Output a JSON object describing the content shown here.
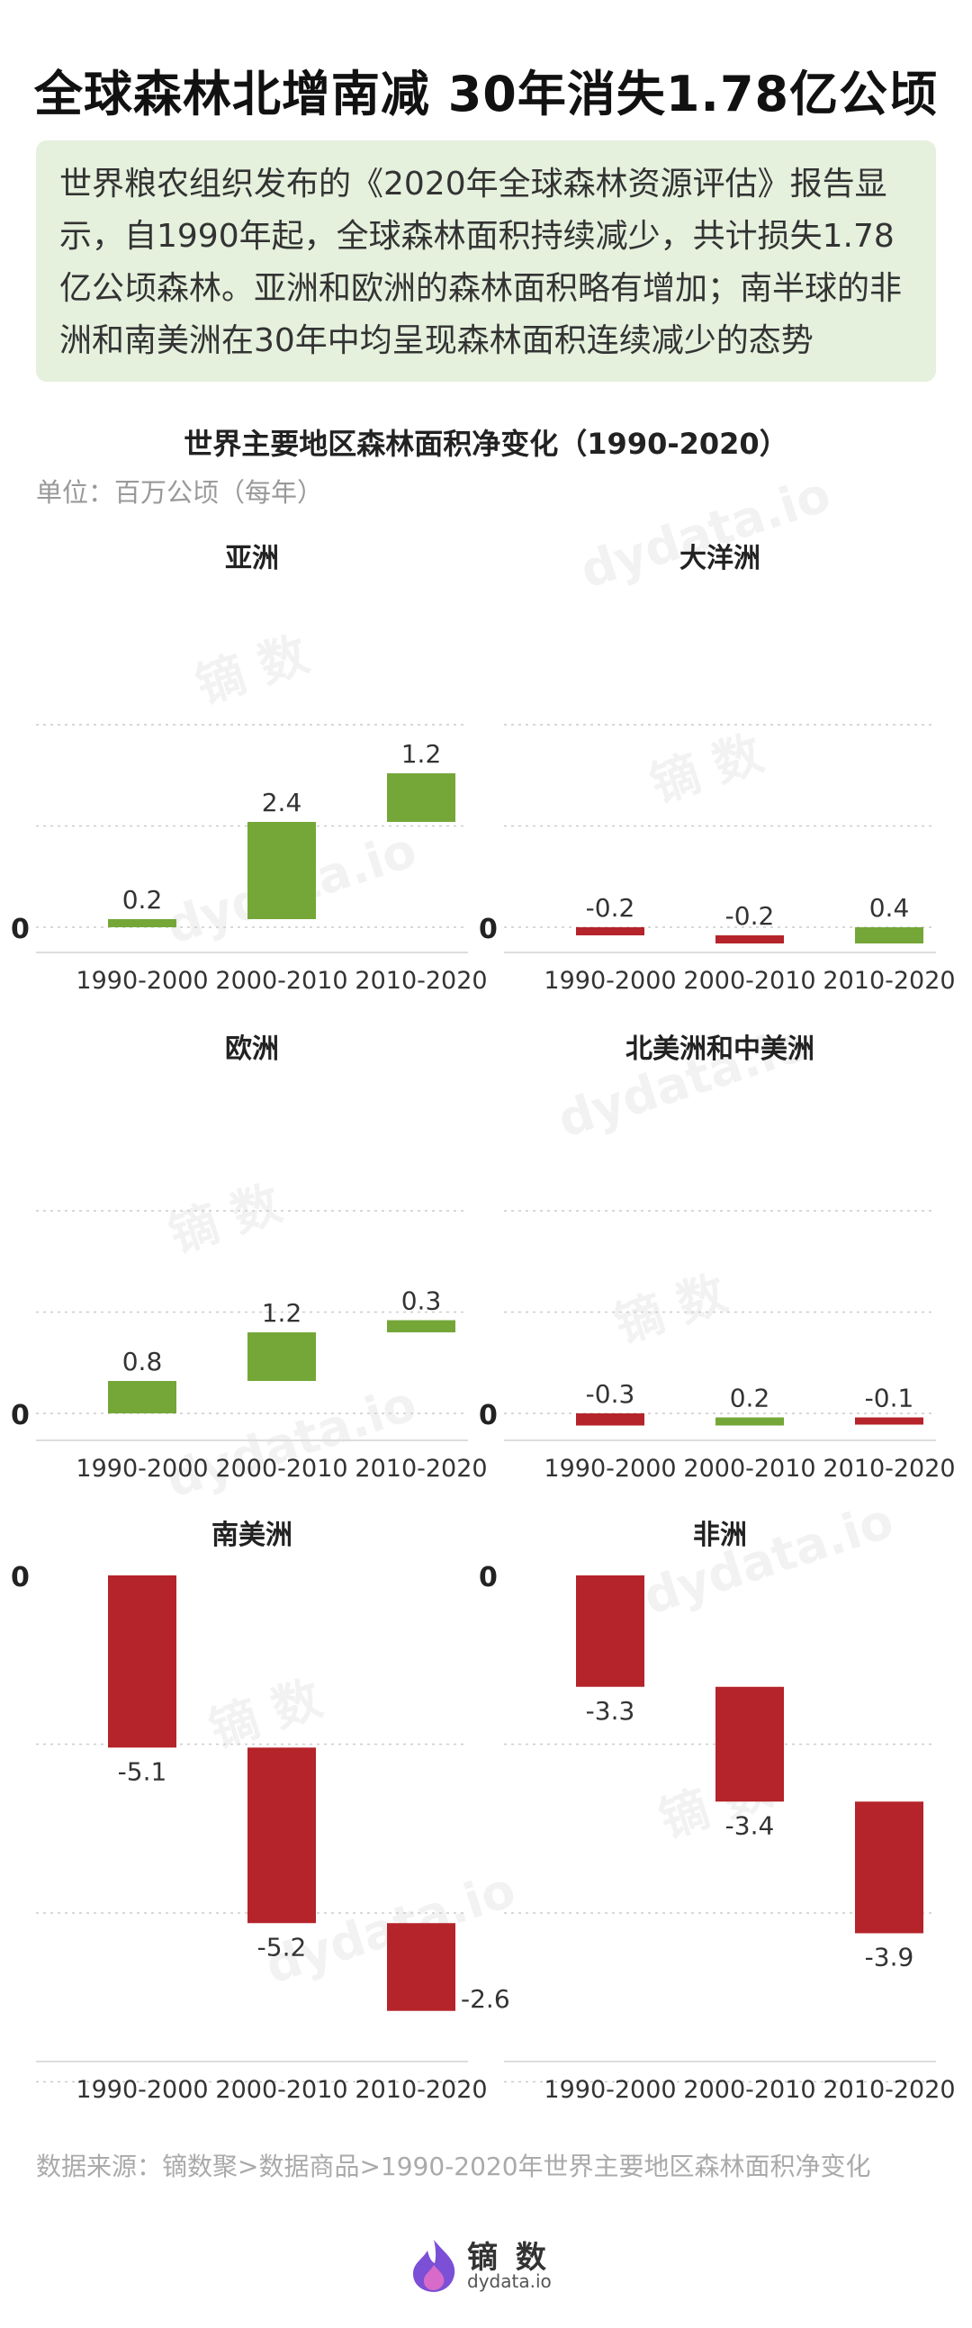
{
  "header": {
    "title": "全球森林北增南减  30年消失1.78亿公顷",
    "intro": "世界粮农组织发布的《2020年全球森林资源评估》报告显示，自1990年起，全球森林面积持续减少，共计损失1.78亿公顷森林。亚洲和欧洲的森林面积略有增加；南半球的非洲和南美洲在30年中均呈现森林面积连续减少的态势"
  },
  "chart_title": "世界主要地区森林面积净变化（1990-2020）",
  "unit": "单位：百万公顷（每年）",
  "source": "数据来源：镝数聚>数据商品>1990-2020年世界主要地区森林面积净变化",
  "colors": {
    "increase": "#74a738",
    "decrease": "#b5242a",
    "intro_bg": "#e5f0dd"
  },
  "logo": {
    "text": "镝 数",
    "sub": "dydata.io",
    "icon": "flame-logo-icon"
  },
  "watermarks": [
    "dydata.io",
    "镝 数"
  ],
  "chart_data": [
    {
      "type": "waterfall",
      "title": "亚洲",
      "categories": [
        "1990-2000",
        "2000-2010",
        "2010-2020"
      ],
      "values": [
        0.2,
        2.4,
        1.2
      ],
      "zero_label": "0"
    },
    {
      "type": "waterfall",
      "title": "大洋洲",
      "categories": [
        "1990-2000",
        "2000-2010",
        "2010-2020"
      ],
      "values": [
        -0.2,
        -0.2,
        0.4
      ],
      "zero_label": "0"
    },
    {
      "type": "waterfall",
      "title": "欧洲",
      "categories": [
        "1990-2000",
        "2000-2010",
        "2010-2020"
      ],
      "values": [
        0.8,
        1.2,
        0.3
      ],
      "zero_label": "0"
    },
    {
      "type": "waterfall",
      "title": "北美洲和中美洲",
      "categories": [
        "1990-2000",
        "2000-2010",
        "2010-2020"
      ],
      "values": [
        -0.3,
        0.2,
        -0.1
      ],
      "zero_label": "0"
    },
    {
      "type": "waterfall",
      "title": "南美洲",
      "categories": [
        "1990-2000",
        "2000-2010",
        "2010-2020"
      ],
      "values": [
        -5.1,
        -5.2,
        -2.6
      ],
      "zero_label": "0"
    },
    {
      "type": "waterfall",
      "title": "非洲",
      "categories": [
        "1990-2000",
        "2000-2010",
        "2010-2020"
      ],
      "values": [
        -3.3,
        -3.4,
        -3.9
      ],
      "zero_label": "0"
    }
  ]
}
